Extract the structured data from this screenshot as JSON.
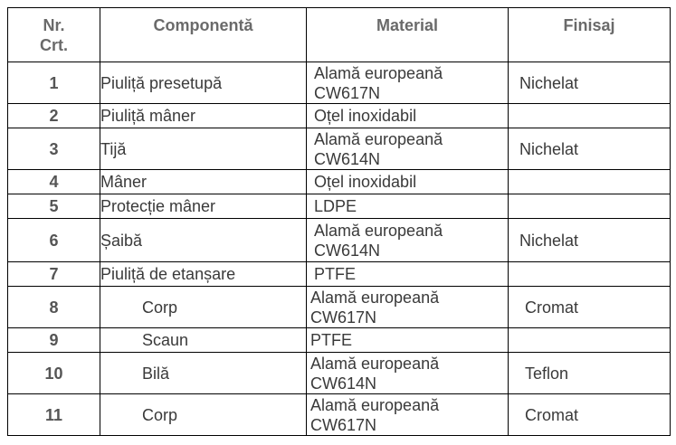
{
  "table": {
    "header": [
      "Nr.\nCrt.",
      "Componentă",
      "Material",
      "Finisaj"
    ],
    "rows": [
      [
        "1",
        "Piuliță presetupă",
        "Alamă europeană\nCW617N",
        "Nichelat"
      ],
      [
        "2",
        "Piuliță mâner",
        "Oțel inoxidabil",
        null
      ],
      [
        "3",
        "Tijă",
        "Alamă europeană\nCW614N",
        "Nichelat"
      ],
      [
        "4",
        "Mâner",
        "Oțel inoxidabil",
        null
      ],
      [
        "5",
        "Protecție mâner",
        "LDPE",
        null
      ],
      [
        "6",
        "Șaibă",
        "Alamă europeană\nCW614N",
        "Nichelat"
      ],
      [
        "7",
        "Piuliță de etanșare",
        "PTFE",
        null
      ],
      [
        "8",
        "Corp",
        "Alamă europeană\nCW617N",
        "Cromat"
      ],
      [
        "9",
        "Scaun",
        "PTFE",
        null
      ],
      [
        "10",
        "Bilă",
        "Alamă europeană\nCW614N",
        "Teflon"
      ],
      [
        "11",
        "Corp",
        "Alamă europeană\nCW617N",
        "Cromat"
      ]
    ]
  }
}
